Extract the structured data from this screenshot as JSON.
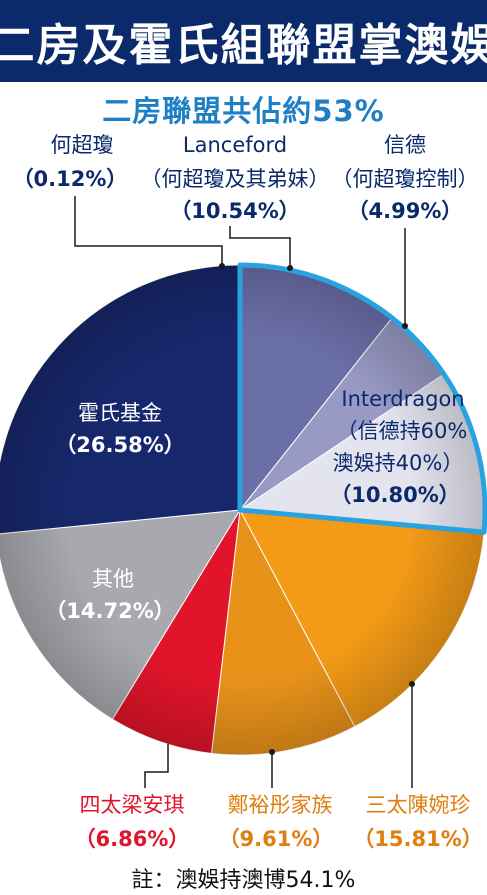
{
  "title": "二房及霍氏組聯盟掌澳娛",
  "subtitle": "二房聯盟共佔約53%",
  "note": "註：澳娛持澳博54.1%",
  "colors": {
    "title_bg": "#0a2a6b",
    "subtitle": "#1f7fc4",
    "highlight_ring": "#29a3e0"
  },
  "chart_data": {
    "type": "pie",
    "title": "二房聯盟共佔約53%",
    "slices": [
      {
        "name": "何超瓊",
        "label": "何超瓊",
        "value": 0.12,
        "value_text": "（0.12%）",
        "color": "#4a4f8e"
      },
      {
        "name": "Lanceford",
        "label": "Lanceford",
        "sublabel": "（何超瓊及其弟妹）",
        "value": 10.54,
        "value_text": "（10.54%）",
        "color": "#6b6fa8"
      },
      {
        "name": "信德",
        "label": "信德",
        "sublabel": "（何超瓊控制）",
        "value": 4.99,
        "value_text": "（4.99%）",
        "color": "#9899c4"
      },
      {
        "name": "Interdragon",
        "label": "Interdragon",
        "sublabel": "（信德持60%",
        "sublabel2": "澳娛持40%）",
        "value": 10.8,
        "value_text": "（10.80%）",
        "color": "#e4e4ef"
      },
      {
        "name": "三太陳婉珍",
        "label": "三太陳婉珍",
        "value": 15.81,
        "value_text": "（15.81%）",
        "color": "#f39a17"
      },
      {
        "name": "鄭裕彤家族",
        "label": "鄭裕彤家族",
        "value": 9.61,
        "value_text": "（9.61%）",
        "color": "#e8921a"
      },
      {
        "name": "四太梁安琪",
        "label": "四太梁安琪",
        "value": 6.86,
        "value_text": "（6.86%）",
        "color": "#e0142a"
      },
      {
        "name": "其他",
        "label": "其他",
        "value": 14.72,
        "value_text": "（14.72%）",
        "color": "#a7a9ae"
      },
      {
        "name": "霍氏基金",
        "label": "霍氏基金",
        "value": 26.58,
        "value_text": "（26.58%）",
        "color": "#17276b"
      }
    ]
  }
}
